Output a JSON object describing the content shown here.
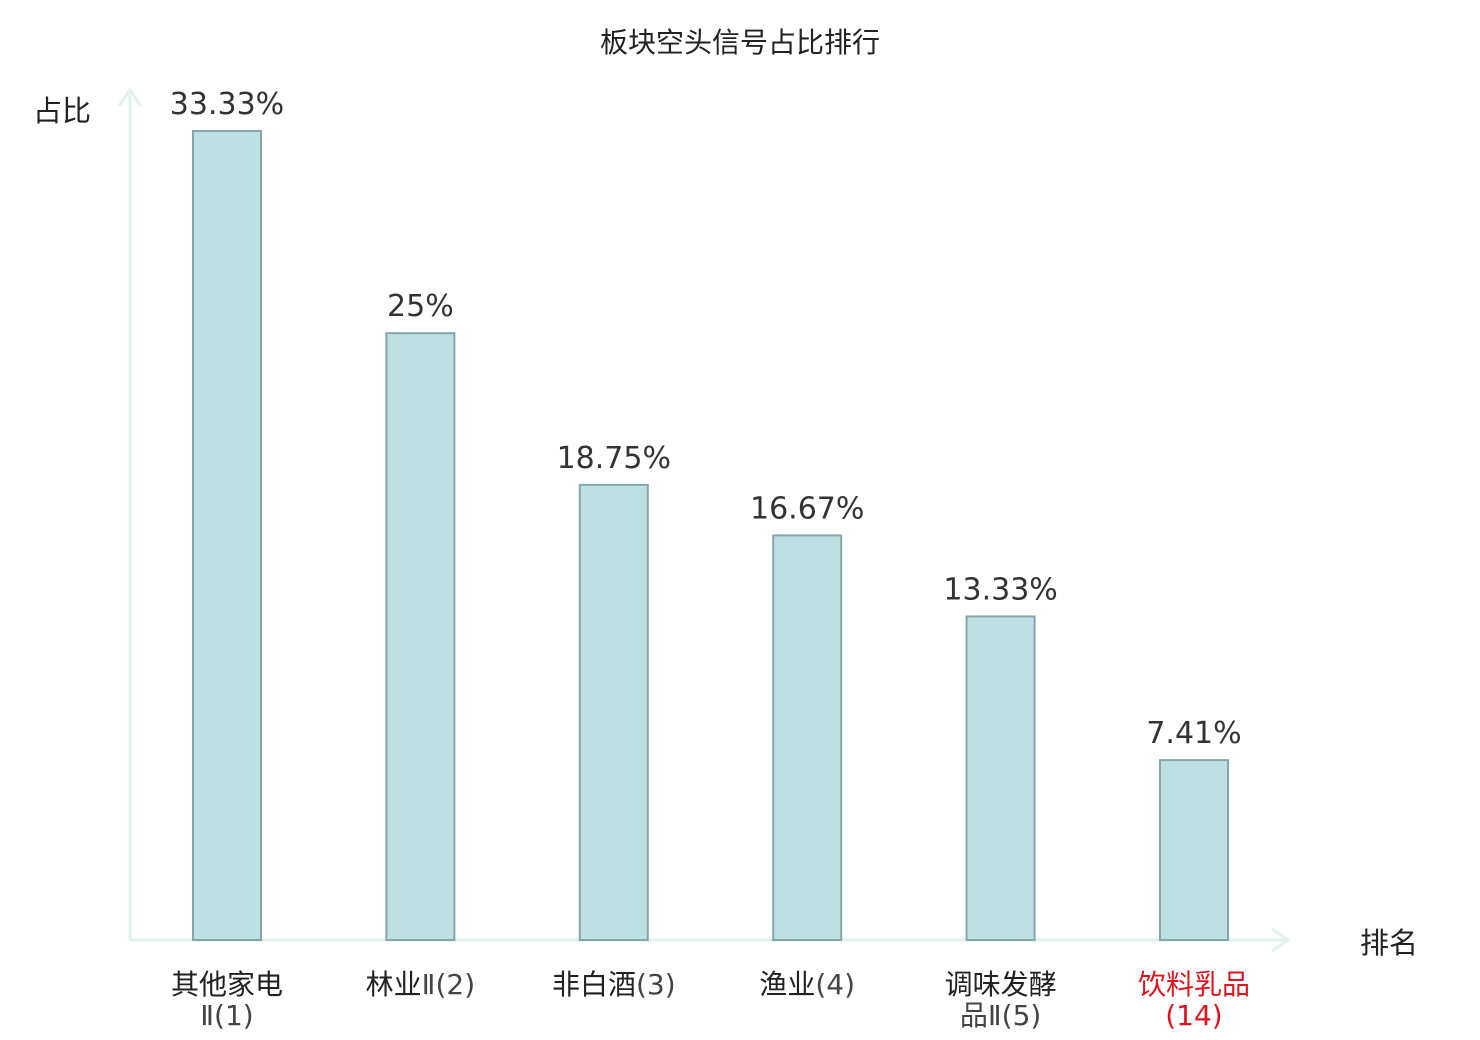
{
  "chart_data": {
    "type": "bar",
    "title": "板块空头信号占比排行",
    "ylabel": "占比",
    "xlabel": "排名",
    "categories": [
      {
        "name": "其他家电",
        "rank": "Ⅱ(1)",
        "highlight": false
      },
      {
        "name": "林业",
        "rank": "Ⅱ(2)",
        "highlight": false
      },
      {
        "name": "非白酒",
        "rank": "(3)",
        "highlight": false
      },
      {
        "name": "渔业",
        "rank": "(4)",
        "highlight": false
      },
      {
        "name": "调味发酵",
        "rank": "品Ⅱ(5)",
        "highlight": false
      },
      {
        "name": "饮料乳品",
        "rank": "(14)",
        "highlight": true
      }
    ],
    "values": [
      33.33,
      25,
      18.75,
      16.67,
      13.33,
      7.41
    ],
    "value_labels": [
      "33.33%",
      "25%",
      "18.75%",
      "16.67%",
      "13.33%",
      "7.41%"
    ],
    "ylim": [
      0,
      33.33
    ],
    "grid": false,
    "legend": "none",
    "colors": {
      "bar_fill": "#bde0e3",
      "bar_stroke": "#86a7aa",
      "axis": "#e0f2ef",
      "highlight_text": "#e0141e"
    }
  }
}
